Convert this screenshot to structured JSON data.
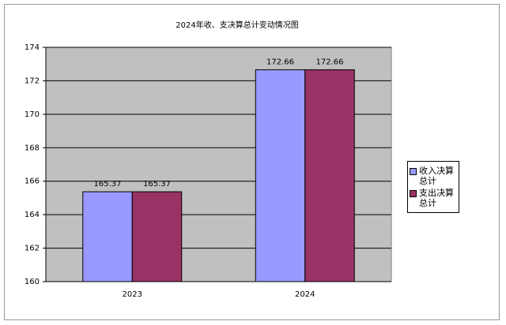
{
  "chart_data": {
    "type": "bar",
    "title": "2024年收、支决算总计变动情况图",
    "categories": [
      "2023",
      "2024"
    ],
    "series": [
      {
        "name": "收入决算总计",
        "color": "#9999ff",
        "values": [
          165.37,
          172.66
        ]
      },
      {
        "name": "支出决算总计",
        "color": "#993366",
        "values": [
          165.37,
          172.66
        ]
      }
    ],
    "ylim": [
      160,
      174
    ],
    "yticks": [
      160,
      162,
      164,
      166,
      168,
      170,
      172,
      174
    ],
    "grid": true,
    "legend": "right",
    "plot_background": "#c0c0c0"
  }
}
